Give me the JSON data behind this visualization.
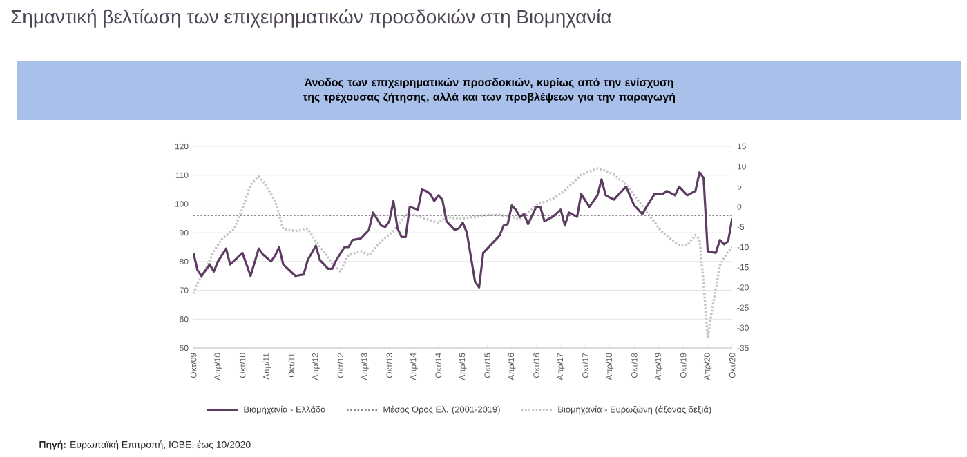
{
  "chart_data": {
    "type": "line",
    "title": "Σημαντική βελτίωση των επιχειρηματικών προσδοκιών στη Βιομηχανία",
    "subtitle": "Άνοδος των επιχειρηματικών προσδοκιών, κυρίως από την ενίσχυση της τρέχουσας ζήτησης, αλλά και των προβλέψεων για την παραγωγή",
    "annotations": [
      "**Πηγή:** Ευρωπαϊκή Επιτροπή, ΙΟΒΕ, έως 10/2020"
    ],
    "xlim": [
      "2009-10",
      "2020-10"
    ],
    "xticks": [
      {
        "value": "2009-10",
        "label": "Οκτ/09"
      },
      {
        "value": "2010-04",
        "label": "Απρ/10"
      },
      {
        "value": "2010-10",
        "label": "Οκτ/10"
      },
      {
        "value": "2011-04",
        "label": "Απρ/11"
      },
      {
        "value": "2011-10",
        "label": "Οκτ/11"
      },
      {
        "value": "2012-04",
        "label": "Απρ/12"
      },
      {
        "value": "2012-10",
        "label": "Οκτ/12"
      },
      {
        "value": "2013-04",
        "label": "Απρ/13"
      },
      {
        "value": "2013-10",
        "label": "Οκτ/13"
      },
      {
        "value": "2014-04",
        "label": "Απρ/14"
      },
      {
        "value": "2014-10",
        "label": "Οκτ/14"
      },
      {
        "value": "2015-04",
        "label": "Απρ/15"
      },
      {
        "value": "2015-10",
        "label": "Οκτ/15"
      },
      {
        "value": "2016-04",
        "label": "Απρ/16"
      },
      {
        "value": "2016-10",
        "label": "Οκτ/16"
      },
      {
        "value": "2017-04",
        "label": "Απρ/17"
      },
      {
        "value": "2017-10",
        "label": "Οκτ/17"
      },
      {
        "value": "2018-04",
        "label": "Απρ/18"
      },
      {
        "value": "2018-10",
        "label": "Οκτ/18"
      },
      {
        "value": "2019-04",
        "label": "Απρ/19"
      },
      {
        "value": "2019-10",
        "label": "Οκτ/19"
      },
      {
        "value": "2020-04",
        "label": "Απρ/20"
      },
      {
        "value": "2020-10",
        "label": "Οκτ/20"
      }
    ],
    "ylim": [
      50,
      120
    ],
    "yticks": [
      50,
      60,
      70,
      80,
      90,
      100,
      110,
      120
    ],
    "y2lim": [
      -35,
      15
    ],
    "y2ticks": [
      -35,
      -30,
      -25,
      -20,
      -15,
      -10,
      -5,
      0,
      5,
      10,
      15
    ],
    "grid": "y",
    "legend": "bottom",
    "ref_lines": [
      {
        "axis": "y",
        "value": 96,
        "label": "Μέσος Όρος Ελ. (2001-2019)",
        "color": "#6b5b70",
        "line_style": "dotted"
      }
    ],
    "series": [
      {
        "name": "Βιομηχανία - Ελλάδα",
        "color": "#5e3b63",
        "line_style": "solid",
        "x": [
          "2009-10",
          "2009-11",
          "2009-12",
          "2010-02",
          "2010-03",
          "2010-04",
          "2010-06",
          "2010-07",
          "2010-10",
          "2010-12",
          "2011-02",
          "2011-03",
          "2011-05",
          "2011-06",
          "2011-07",
          "2011-08",
          "2011-11",
          "2012-01",
          "2012-02",
          "2012-04",
          "2012-05",
          "2012-07",
          "2012-08",
          "2012-09",
          "2012-11",
          "2012-12",
          "2013-01",
          "2013-03",
          "2013-05",
          "2013-06",
          "2013-08",
          "2013-09",
          "2013-10",
          "2013-11",
          "2013-12",
          "2014-01",
          "2014-02",
          "2014-03",
          "2014-05",
          "2014-06",
          "2014-07",
          "2014-08",
          "2014-09",
          "2014-10",
          "2014-11",
          "2014-12",
          "2015-02",
          "2015-03",
          "2015-04",
          "2015-05",
          "2015-07",
          "2015-08",
          "2015-09",
          "2015-11",
          "2016-01",
          "2016-02",
          "2016-03",
          "2016-04",
          "2016-05",
          "2016-06",
          "2016-07",
          "2016-08",
          "2016-10",
          "2016-11",
          "2016-12",
          "2017-02",
          "2017-04",
          "2017-05",
          "2017-06",
          "2017-08",
          "2017-09",
          "2017-11",
          "2018-01",
          "2018-02",
          "2018-03",
          "2018-05",
          "2018-08",
          "2018-10",
          "2018-12",
          "2019-01",
          "2019-03",
          "2019-05",
          "2019-06",
          "2019-08",
          "2019-09",
          "2019-11",
          "2020-01",
          "2020-02",
          "2020-03",
          "2020-04",
          "2020-06",
          "2020-07",
          "2020-08",
          "2020-09",
          "2020-10"
        ],
        "values": [
          83,
          77,
          75,
          79,
          76.5,
          80,
          84.5,
          79,
          83,
          75,
          84.5,
          82.5,
          80,
          82,
          85,
          79,
          75,
          75.5,
          80.5,
          85.5,
          80.5,
          77.5,
          77.5,
          80.5,
          85,
          85,
          87.5,
          88,
          91,
          97,
          92.5,
          92,
          94,
          101,
          91.5,
          88.5,
          88.5,
          99,
          98,
          105,
          104.5,
          103.5,
          101,
          103,
          101.5,
          94,
          91,
          91.5,
          93.5,
          90,
          73,
          71,
          83,
          86,
          89,
          92.5,
          93,
          99.5,
          98,
          95.5,
          96.5,
          93,
          99,
          99,
          94,
          95.5,
          98,
          92.5,
          97,
          95.5,
          103.5,
          99,
          103,
          108.5,
          103,
          101.5,
          106,
          99.5,
          96.5,
          99,
          103.5,
          103.5,
          104.5,
          103,
          106,
          103,
          104.5,
          111,
          109,
          83.5,
          83,
          87.5,
          86,
          87,
          95
        ]
      },
      {
        "name": "Βιομηχανία - Ευρωζώνη (άξονας δεξιά)",
        "color": "#c4c4c4",
        "line_style": "dotted",
        "axis": "y2",
        "x": [
          "2009-10",
          "2009-11",
          "2010-01",
          "2010-03",
          "2010-05",
          "2010-08",
          "2010-10",
          "2010-12",
          "2011-02",
          "2011-03",
          "2011-06",
          "2011-08",
          "2011-11",
          "2012-02",
          "2012-04",
          "2012-08",
          "2012-10",
          "2012-12",
          "2013-03",
          "2013-05",
          "2013-08",
          "2013-11",
          "2014-02",
          "2014-04",
          "2014-07",
          "2014-10",
          "2014-12",
          "2015-03",
          "2015-07",
          "2015-10",
          "2016-01",
          "2016-06",
          "2016-10",
          "2017-02",
          "2017-05",
          "2017-09",
          "2018-01",
          "2018-03",
          "2018-05",
          "2018-08",
          "2018-11",
          "2019-02",
          "2019-05",
          "2019-09",
          "2019-11",
          "2020-01",
          "2020-02",
          "2020-03",
          "2020-04",
          "2020-05",
          "2020-07",
          "2020-09",
          "2020-10"
        ],
        "values": [
          -21.5,
          -19,
          -15.5,
          -11,
          -8,
          -5.5,
          -0.5,
          5.5,
          7.5,
          6.5,
          1.5,
          -5.5,
          -6,
          -5.5,
          -8.5,
          -14,
          -16,
          -12,
          -11,
          -12,
          -8.5,
          -6,
          -2,
          -2,
          -3,
          -4,
          -2.5,
          -3,
          -2.5,
          -2,
          -2,
          -3,
          0.5,
          2,
          4,
          8,
          9.5,
          9,
          8,
          5.5,
          1.5,
          -2.5,
          -6.5,
          -9.5,
          -9.5,
          -7,
          -8,
          -19,
          -32.5,
          -26,
          -14.5,
          -11,
          -10
        ]
      }
    ]
  }
}
